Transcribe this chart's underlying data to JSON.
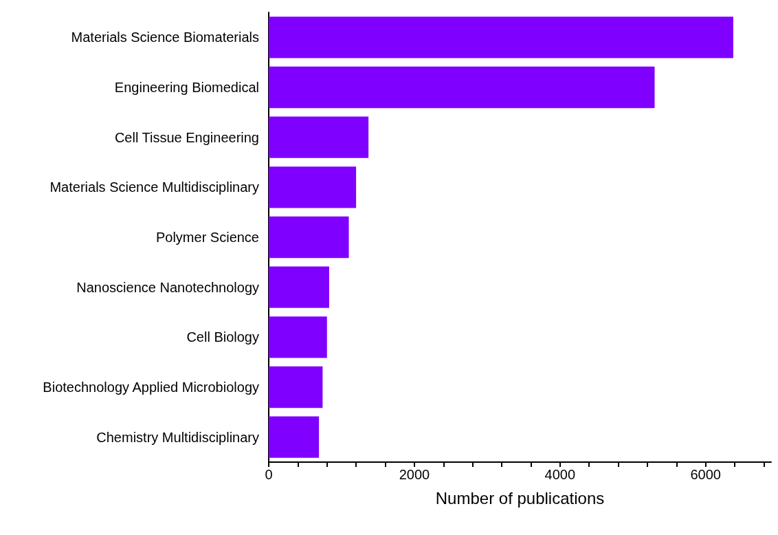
{
  "chart_data": {
    "type": "bar",
    "orientation": "horizontal",
    "xlabel": "Number of publications",
    "categories": [
      "Materials Science Biomaterials",
      "Engineering Biomedical",
      "Cell Tissue Engineering",
      "Materials Science Multidisciplinary",
      "Polymer Science",
      "Nanoscience Nanotechnology",
      "Cell Biology",
      "Biotechnology Applied Microbiology",
      "Chemistry Multidisciplinary"
    ],
    "values": [
      6380,
      5300,
      1370,
      1200,
      1100,
      830,
      800,
      740,
      690
    ],
    "color": "#8000ff",
    "xlim": [
      0,
      6900
    ],
    "xticks": [
      0,
      {
        "value": 400,
        "label": null
      },
      {
        "value": 800,
        "label": null
      },
      {
        "value": 1200,
        "label": null
      },
      {
        "value": 1600,
        "label": null
      },
      2000,
      {
        "value": 2400,
        "label": null
      },
      {
        "value": 2800,
        "label": null
      },
      {
        "value": 3200,
        "label": null
      },
      {
        "value": 3600,
        "label": null
      },
      4000,
      {
        "value": 4400,
        "label": null
      },
      {
        "value": 4800,
        "label": null
      },
      {
        "value": 5200,
        "label": null
      },
      {
        "value": 5600,
        "label": null
      },
      6000,
      {
        "value": 6400,
        "label": null
      },
      {
        "value": 6800,
        "label": null
      }
    ],
    "grid": false
  }
}
